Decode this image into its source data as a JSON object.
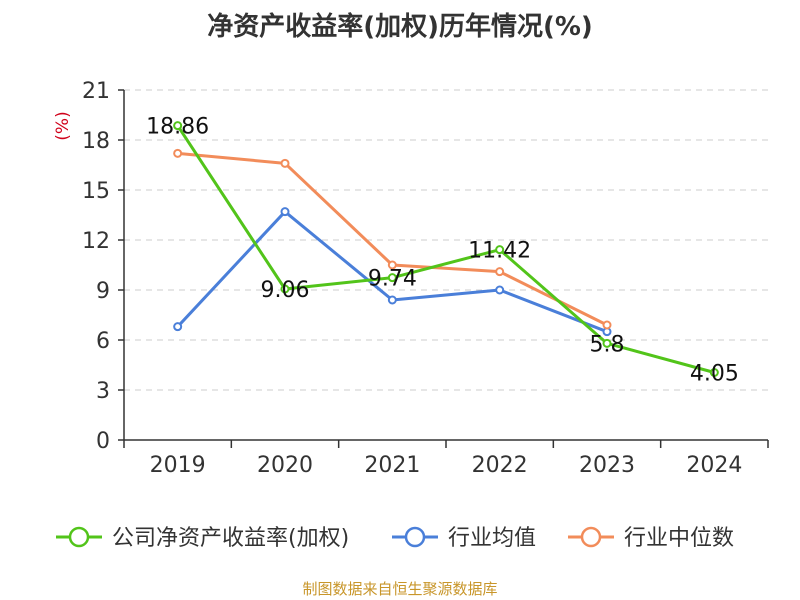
{
  "title": "净资产收益率(加权)历年情况(%)",
  "footer": "制图数据来自恒生聚源数据库",
  "chart_data": {
    "type": "line",
    "title": "净资产收益率(加权)历年情况(%)",
    "ylabel": "(%)",
    "xlabel": "",
    "categories": [
      "2019",
      "2020",
      "2021",
      "2022",
      "2023",
      "2024"
    ],
    "ylim": [
      0,
      21
    ],
    "yticks": [
      0,
      3,
      6,
      9,
      12,
      15,
      18,
      21
    ],
    "grid": true,
    "legend_position": "bottom",
    "series": [
      {
        "name": "公司净资产收益率(加权)",
        "color": "#52c41a",
        "values": [
          18.86,
          9.06,
          9.74,
          11.42,
          5.8,
          4.05
        ],
        "labels": [
          "18.86",
          "9.06",
          "9.74",
          "11.42",
          "5.8",
          "4.05"
        ]
      },
      {
        "name": "行业均值",
        "color": "#4a7fd9",
        "values": [
          6.8,
          13.7,
          8.4,
          9.0,
          6.5,
          null
        ]
      },
      {
        "name": "行业中位数",
        "color": "#f28c5a",
        "values": [
          17.2,
          16.6,
          10.5,
          10.1,
          6.9,
          null
        ]
      }
    ]
  },
  "colors": {
    "axis": "#333333",
    "grid": "#cccccc",
    "ylabel": "#d0021b",
    "footer": "#c8962a"
  }
}
